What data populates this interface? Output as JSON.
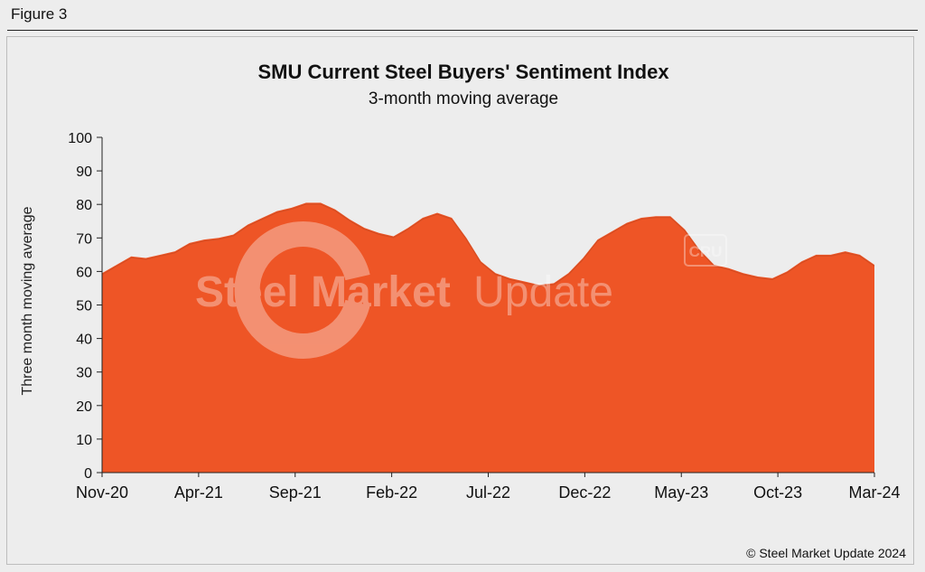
{
  "figure_label": "Figure 3",
  "copyright": "© Steel Market Update 2024",
  "watermark": {
    "brand_bold": "Steel Market",
    "brand_light": "Update",
    "small_mark": "CRU"
  },
  "colors": {
    "fill": "#ee5526",
    "background": "#ededed",
    "axis": "#222222",
    "text": "#111111"
  },
  "chart_data": {
    "type": "area",
    "title": "SMU Current Steel Buyers' Sentiment Index",
    "subtitle": "3-month moving average",
    "ylabel": "Three month moving average",
    "xlabel": "",
    "ylim": [
      0,
      100
    ],
    "yticks": [
      0,
      10,
      20,
      30,
      40,
      50,
      60,
      70,
      80,
      90,
      100
    ],
    "xtick_labels": [
      "Nov-20",
      "Apr-21",
      "Sep-21",
      "Feb-22",
      "Jul-22",
      "Dec-22",
      "May-23",
      "Oct-23",
      "Mar-24"
    ],
    "series": [
      {
        "name": "SMU Current Steel Buyers' Sentiment Index (3-month moving average)",
        "x_start": "Nov-20",
        "interval": "semi-monthly",
        "values": [
          59.5,
          62.0,
          64.5,
          64.0,
          65.0,
          66.0,
          68.5,
          69.5,
          70.0,
          71.0,
          74.0,
          76.0,
          78.0,
          79.0,
          80.5,
          80.5,
          78.5,
          75.5,
          73.0,
          71.5,
          70.5,
          73.0,
          76.0,
          77.5,
          76.0,
          70.0,
          63.0,
          59.5,
          58.0,
          57.0,
          56.0,
          56.5,
          59.5,
          64.0,
          69.5,
          72.0,
          74.5,
          76.0,
          76.5,
          76.5,
          72.5,
          66.5,
          62.0,
          61.0,
          59.5,
          58.5,
          58.0,
          60.0,
          63.0,
          65.0,
          65.0,
          66.0,
          65.0,
          62.0
        ]
      }
    ]
  }
}
